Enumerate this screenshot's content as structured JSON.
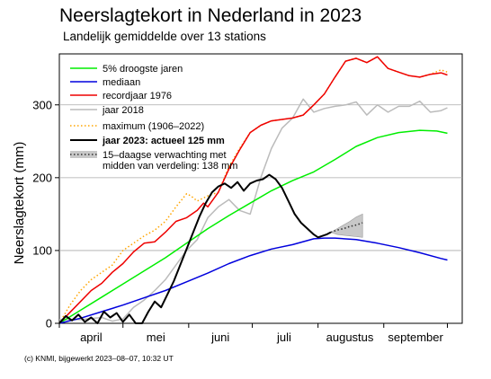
{
  "chart_data": {
    "type": "line",
    "title": "Neerslagtekort in Nederland in 2023",
    "subtitle": "Landelijk gemiddelde over 13 stations",
    "ylabel": "Neerslagtekort (mm)",
    "xlabel": "",
    "x_unit": "day of season (0 = 1 april)",
    "xlim": [
      0,
      190
    ],
    "ylim": [
      0,
      370
    ],
    "yticks": [
      0,
      100,
      200,
      300
    ],
    "month_labels": [
      {
        "label": "april",
        "x": 15
      },
      {
        "label": "mei",
        "x": 45.5
      },
      {
        "label": "juni",
        "x": 76
      },
      {
        "label": "juli",
        "x": 106
      },
      {
        "label": "augustus",
        "x": 137
      },
      {
        "label": "september",
        "x": 168
      }
    ],
    "month_ticks": [
      0,
      30,
      61,
      91,
      122,
      153,
      183
    ],
    "grid": "horizontal",
    "legend": {
      "placement": "top-left"
    },
    "series": [
      {
        "key": "droogste",
        "name": "5% droogste jaren",
        "color": "#00ee00",
        "style": "solid",
        "x": [
          0,
          10,
          20,
          30,
          40,
          50,
          60,
          70,
          80,
          90,
          100,
          110,
          120,
          130,
          140,
          150,
          160,
          170,
          178,
          183
        ],
        "y": [
          0,
          18,
          36,
          54,
          72,
          90,
          110,
          130,
          148,
          165,
          182,
          196,
          208,
          225,
          243,
          255,
          262,
          265,
          264,
          261
        ]
      },
      {
        "key": "mediaan",
        "name": "mediaan",
        "color": "#0000dd",
        "style": "solid",
        "x": [
          0,
          10,
          20,
          30,
          40,
          50,
          60,
          70,
          80,
          90,
          100,
          110,
          120,
          125,
          130,
          140,
          150,
          160,
          170,
          180,
          183
        ],
        "y": [
          0,
          7,
          16,
          25,
          35,
          45,
          57,
          69,
          82,
          93,
          102,
          108,
          116,
          117,
          117,
          115,
          110,
          104,
          97,
          89,
          87
        ]
      },
      {
        "key": "recordjaar",
        "name": "recordjaar 1976",
        "color": "#ee0000",
        "style": "solid",
        "x": [
          0,
          5,
          10,
          15,
          20,
          25,
          30,
          35,
          40,
          45,
          50,
          55,
          60,
          65,
          68,
          70,
          75,
          80,
          85,
          90,
          95,
          100,
          105,
          110,
          115,
          120,
          125,
          130,
          135,
          140,
          145,
          150,
          155,
          160,
          165,
          170,
          175,
          180,
          183
        ],
        "y": [
          0,
          15,
          30,
          45,
          55,
          70,
          82,
          98,
          110,
          112,
          125,
          140,
          145,
          155,
          165,
          160,
          180,
          212,
          238,
          262,
          272,
          278,
          280,
          282,
          286,
          300,
          315,
          338,
          360,
          364,
          358,
          366,
          350,
          345,
          340,
          338,
          342,
          344,
          341
        ]
      },
      {
        "key": "j2018",
        "name": "jaar 2018",
        "color": "#bbbbbb",
        "style": "solid",
        "x": [
          0,
          10,
          20,
          25,
          30,
          35,
          40,
          45,
          50,
          55,
          60,
          65,
          70,
          75,
          80,
          85,
          90,
          95,
          100,
          105,
          110,
          115,
          120,
          125,
          130,
          135,
          140,
          145,
          150,
          155,
          160,
          165,
          170,
          175,
          180,
          183
        ],
        "y": [
          5,
          5,
          8,
          3,
          6,
          22,
          32,
          45,
          60,
          80,
          100,
          115,
          145,
          160,
          170,
          155,
          150,
          200,
          240,
          268,
          282,
          308,
          290,
          295,
          298,
          300,
          304,
          286,
          300,
          290,
          298,
          298,
          305,
          290,
          292,
          296
        ]
      },
      {
        "key": "maximum",
        "name": "maximum (1906–2022)",
        "color": "#ffa500",
        "style": "dotted",
        "x": [
          0,
          5,
          10,
          15,
          20,
          25,
          30,
          35,
          40,
          45,
          50,
          55,
          60,
          62,
          65,
          70,
          75,
          80,
          85,
          90,
          95,
          100,
          105,
          110,
          115,
          120,
          125,
          130,
          135,
          140,
          145,
          150,
          155,
          160,
          165,
          170,
          175,
          180,
          183
        ],
        "y": [
          0,
          25,
          45,
          60,
          70,
          80,
          100,
          110,
          120,
          128,
          140,
          160,
          178,
          175,
          168,
          175,
          180,
          215,
          240,
          262,
          272,
          278,
          280,
          282,
          286,
          300,
          315,
          338,
          360,
          364,
          358,
          366,
          350,
          345,
          340,
          338,
          342,
          348,
          345
        ]
      },
      {
        "key": "j2023",
        "name": "jaar 2023: actueel 125 mm",
        "color": "#000000",
        "style": "solid",
        "x": [
          0,
          3,
          6,
          9,
          12,
          15,
          18,
          21,
          24,
          27,
          30,
          33,
          36,
          39,
          42,
          45,
          48,
          51,
          54,
          57,
          60,
          63,
          66,
          69,
          72,
          75,
          78,
          81,
          84,
          87,
          90,
          93,
          96,
          99,
          102,
          105,
          108,
          111,
          114,
          117,
          120,
          122,
          124,
          126,
          128
        ],
        "y": [
          0,
          10,
          4,
          12,
          2,
          8,
          0,
          16,
          8,
          14,
          2,
          12,
          0,
          0,
          16,
          30,
          22,
          40,
          58,
          80,
          102,
          124,
          146,
          165,
          180,
          188,
          192,
          186,
          194,
          182,
          192,
          196,
          198,
          204,
          198,
          186,
          168,
          150,
          138,
          130,
          122,
          118,
          120,
          122,
          125
        ]
      },
      {
        "key": "verwachting",
        "name": "15–daagse verwachting met midden van verdeling: 138 mm",
        "color": "#333333",
        "style": "dotted",
        "x": [
          128,
          131,
          134,
          137,
          140,
          143
        ],
        "y": [
          125,
          128,
          130,
          133,
          135,
          138
        ],
        "band_upper": [
          125,
          130,
          135,
          140,
          146,
          150
        ],
        "band_lower": [
          125,
          122,
          121,
          120,
          119,
          118
        ]
      }
    ],
    "footer": "(c) KNMI, bijgewerkt 2023–08–07, 10:32 UT"
  }
}
